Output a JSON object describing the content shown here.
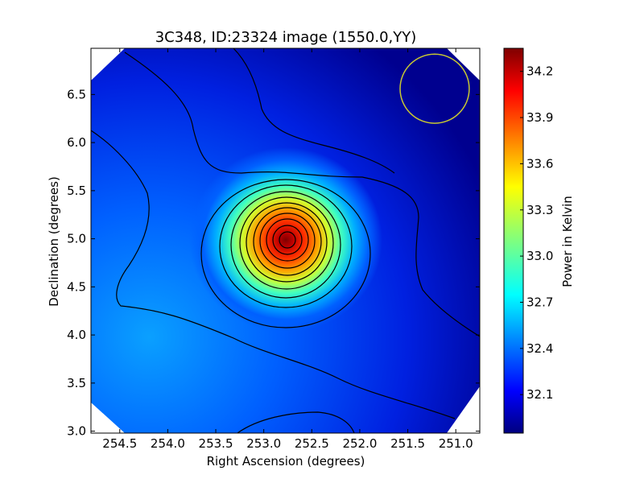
{
  "chart_data": {
    "type": "heatmap",
    "title": "3C348, ID:23324 image (1550.0,YY)",
    "xlabel": "Right Ascension (degrees)",
    "ylabel": "Declination (degrees)",
    "colorbar_label": "Power in Kelvin",
    "xlim": [
      254.8,
      250.75
    ],
    "ylim": [
      2.98,
      6.98
    ],
    "x_ticks": [
      "254.5",
      "254.0",
      "253.5",
      "253.0",
      "252.5",
      "252.0",
      "251.5",
      "251.0"
    ],
    "x_tick_values": [
      254.5,
      254.0,
      253.5,
      253.0,
      252.5,
      252.0,
      251.5,
      251.0
    ],
    "y_ticks": [
      "3.0",
      "3.5",
      "4.0",
      "4.5",
      "5.0",
      "5.5",
      "6.0",
      "6.5"
    ],
    "y_tick_values": [
      3.0,
      3.5,
      4.0,
      4.5,
      5.0,
      5.5,
      6.0,
      6.5
    ],
    "colorbar_range": [
      31.85,
      34.35
    ],
    "colorbar_ticks": [
      "32.1",
      "32.4",
      "32.7",
      "33.0",
      "33.3",
      "33.6",
      "33.9",
      "34.2"
    ],
    "colorbar_tick_values": [
      32.1,
      32.4,
      32.7,
      33.0,
      33.3,
      33.6,
      33.9,
      34.2
    ],
    "colormap": "jet",
    "source_peak": {
      "ra": 252.78,
      "dec": 5.01,
      "value": 34.3
    },
    "beam_circle": {
      "ra": 251.22,
      "dec": 6.56,
      "radius_deg": 0.36,
      "color": "#c8c832"
    },
    "contour_color": "#000000",
    "grid": false
  }
}
